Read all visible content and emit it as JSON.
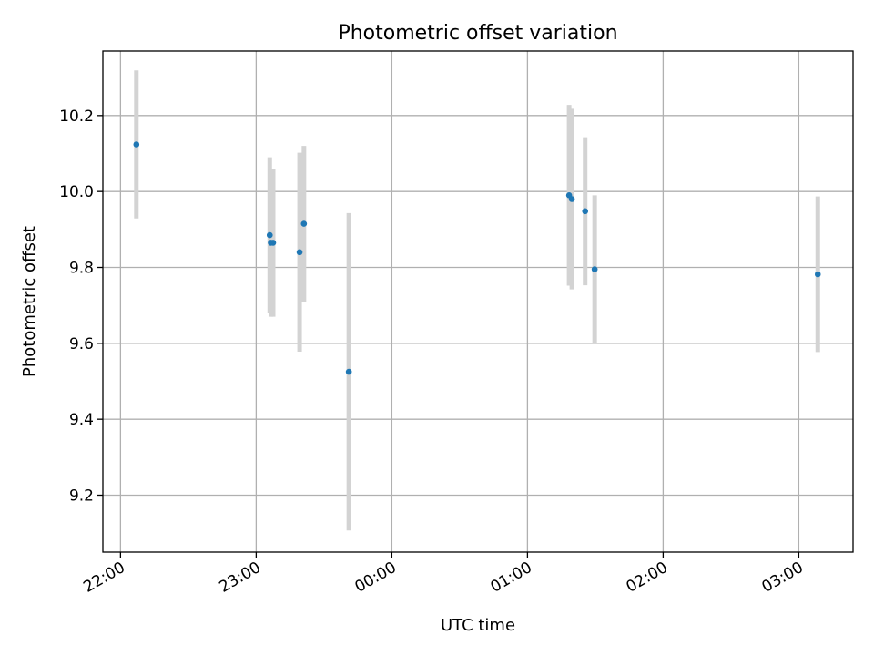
{
  "chart_data": {
    "type": "scatter",
    "title": "Photometric offset variation",
    "xlabel": "UTC time",
    "ylabel": "Photometric offset",
    "x_tick_labels": [
      "22:00",
      "23:00",
      "00:00",
      "01:00",
      "02:00",
      "03:00"
    ],
    "x_tick_hours": [
      22,
      23,
      24,
      25,
      26,
      27
    ],
    "xlim_hours": [
      21.87,
      27.4
    ],
    "y_ticks": [
      9.2,
      9.4,
      9.6,
      9.8,
      10.0,
      10.2
    ],
    "y_tick_labels": [
      "9.2",
      "9.4",
      "9.6",
      "9.8",
      "10.0",
      "10.2"
    ],
    "ylim": [
      9.05,
      10.37
    ],
    "grid": true,
    "point_color": "#1f77b4",
    "errorbar_color": "#d3d3d3",
    "points": [
      {
        "time": "22:07",
        "x_hours": 22.117,
        "y": 10.124,
        "yerr": 0.195
      },
      {
        "time": "23:06",
        "x_hours": 23.1,
        "y": 9.885,
        "yerr": 0.205
      },
      {
        "time": "23:06",
        "x_hours": 23.108,
        "y": 9.865,
        "yerr": 0.195
      },
      {
        "time": "23:07",
        "x_hours": 23.125,
        "y": 9.865,
        "yerr": 0.195
      },
      {
        "time": "23:19",
        "x_hours": 23.32,
        "y": 9.84,
        "yerr": 0.262
      },
      {
        "time": "23:21",
        "x_hours": 23.352,
        "y": 9.915,
        "yerr": 0.205
      },
      {
        "time": "23:41",
        "x_hours": 23.683,
        "y": 9.525,
        "yerr": 0.418
      },
      {
        "time": "01:18",
        "x_hours": 25.307,
        "y": 9.99,
        "yerr": 0.238
      },
      {
        "time": "01:19",
        "x_hours": 25.327,
        "y": 9.98,
        "yerr": 0.238
      },
      {
        "time": "01:25",
        "x_hours": 25.425,
        "y": 9.948,
        "yerr": 0.195
      },
      {
        "time": "01:29",
        "x_hours": 25.495,
        "y": 9.795,
        "yerr": 0.195
      },
      {
        "time": "03:08",
        "x_hours": 27.14,
        "y": 9.782,
        "yerr": 0.205
      }
    ]
  }
}
